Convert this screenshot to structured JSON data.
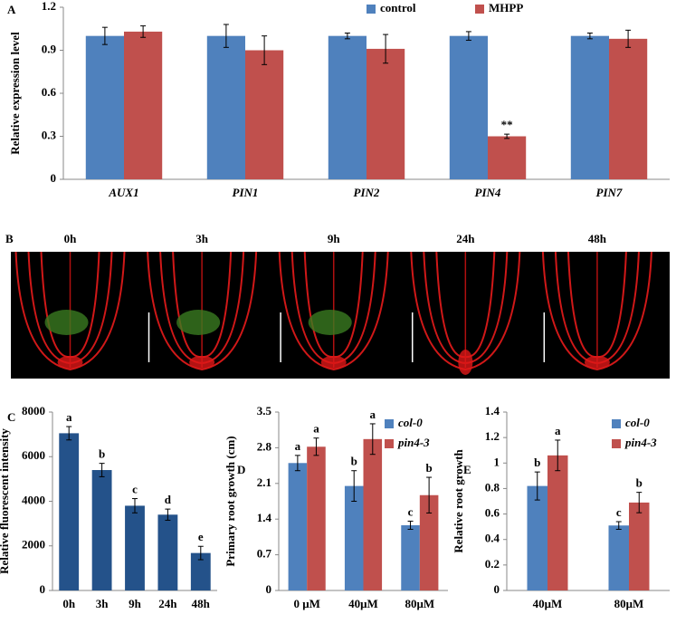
{
  "chart_data": [
    {
      "type": "bar",
      "panel": "A",
      "ylabel": "Relative expression level",
      "categories": [
        "AUX1",
        "PIN1",
        "PIN2",
        "PIN4",
        "PIN7"
      ],
      "italic_categories": true,
      "series": [
        {
          "name": "control",
          "color": "#4f81bd",
          "values": [
            1.0,
            1.0,
            1.0,
            1.0,
            1.0
          ],
          "errors": [
            0.06,
            0.08,
            0.02,
            0.03,
            0.02
          ]
        },
        {
          "name": "MHPP",
          "color": "#c0504d",
          "values": [
            1.03,
            0.9,
            0.91,
            0.3,
            0.98
          ],
          "errors": [
            0.04,
            0.1,
            0.1,
            0.015,
            0.06
          ],
          "letters": [
            null,
            null,
            null,
            "**",
            null
          ]
        }
      ],
      "ylim": [
        0,
        1.2
      ],
      "yticks": [
        0,
        0.3,
        0.6,
        0.9,
        1.2
      ],
      "legend": "top",
      "grid": false
    },
    {
      "type": "image",
      "panel": "B",
      "labels": [
        "0h",
        "3h",
        "9h",
        "24h",
        "48h"
      ]
    },
    {
      "type": "bar",
      "panel": "C",
      "ylabel": "Relative fluorescent intensity",
      "categories": [
        "0h",
        "3h",
        "9h",
        "24h",
        "48h"
      ],
      "color": "#24528a",
      "values": [
        7050,
        5400,
        3800,
        3400,
        1680
      ],
      "errors": [
        300,
        300,
        320,
        250,
        300
      ],
      "letters": [
        "a",
        "b",
        "c",
        "d",
        "e"
      ],
      "ylim": [
        0,
        8000
      ],
      "yticks": [
        0,
        2000,
        4000,
        6000,
        8000
      ],
      "grid": false
    },
    {
      "type": "bar",
      "panel": "D",
      "ylabel": "Primary root growth (cm)",
      "categories": [
        "0 μM",
        "40μM",
        "80μM"
      ],
      "legend_italic": true,
      "series": [
        {
          "name": "col-0",
          "color": "#4f81bd",
          "values": [
            2.5,
            2.05,
            1.28
          ],
          "errors": [
            0.15,
            0.3,
            0.08
          ],
          "letters": [
            "a",
            "b",
            "c"
          ]
        },
        {
          "name": "pin4-3",
          "color": "#c0504d",
          "values": [
            2.82,
            2.97,
            1.87
          ],
          "errors": [
            0.17,
            0.3,
            0.35
          ],
          "letters": [
            "a",
            "a",
            "b"
          ]
        }
      ],
      "ylim": [
        0,
        3.5
      ],
      "yticks": [
        0,
        0.7,
        1.4,
        2.1,
        2.8,
        3.5
      ],
      "legend": "upper right",
      "grid": false
    },
    {
      "type": "bar",
      "panel": "E",
      "ylabel": "Relative root growth",
      "categories": [
        "40μM",
        "80μM"
      ],
      "legend_italic": true,
      "series": [
        {
          "name": "col-0",
          "color": "#4f81bd",
          "values": [
            0.82,
            0.51
          ],
          "errors": [
            0.11,
            0.03
          ],
          "letters": [
            "b",
            "c"
          ]
        },
        {
          "name": "pin4-3",
          "color": "#c0504d",
          "values": [
            1.06,
            0.69
          ],
          "errors": [
            0.12,
            0.08
          ],
          "letters": [
            "a",
            "b"
          ]
        }
      ],
      "ylim": [
        0,
        1.4
      ],
      "yticks": [
        0,
        0.2,
        0.4,
        0.6,
        0.8,
        1,
        1.2,
        1.4
      ],
      "legend": "upper right",
      "grid": false
    }
  ]
}
